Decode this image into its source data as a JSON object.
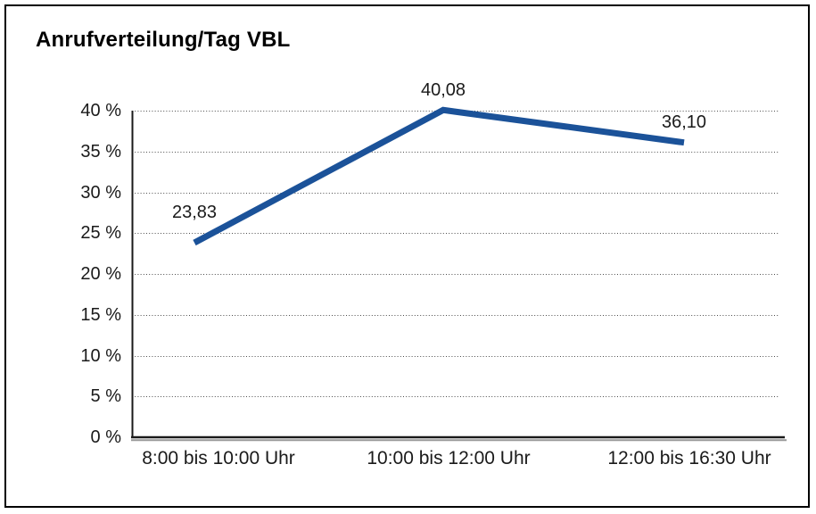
{
  "title": "Anrufverteilung/Tag VBL",
  "chart_data": {
    "type": "line",
    "title": "Anrufverteilung/Tag VBL",
    "categories": [
      "8:00 bis 10:00 Uhr",
      "10:00 bis 12:00 Uhr",
      "12:00 bis 16:30 Uhr"
    ],
    "values": [
      23.83,
      40.08,
      36.1
    ],
    "data_labels": [
      "23,83",
      "40,08",
      "36,10"
    ],
    "series": [
      {
        "name": "Anrufverteilung/Tag VBL",
        "values": [
          23.83,
          40.08,
          36.1
        ]
      }
    ],
    "xlabel": "",
    "ylabel": "",
    "ylim": [
      0,
      40
    ],
    "ytick_step": 5,
    "ytick_labels": [
      "0 %",
      "5 %",
      "10 %",
      "15 %",
      "20 %",
      "25 %",
      "30 %",
      "35 %",
      "40 %"
    ],
    "grid": "horizontal-dotted",
    "legend": "none"
  },
  "colors": {
    "line": "#1B5299",
    "grid": "#4d4d4d",
    "axis": "#1a1a1a",
    "axis_shadow": "#999999",
    "frame_border": "#000000",
    "background": "#ffffff",
    "text": "#1a1a1a"
  }
}
